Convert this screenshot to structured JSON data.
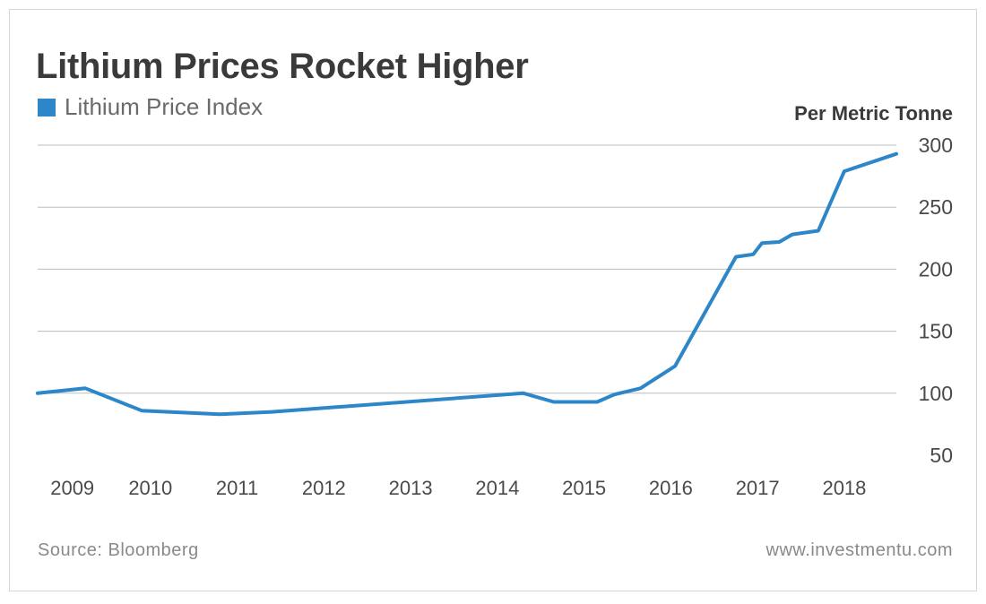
{
  "title": "Lithium Prices Rocket Higher",
  "legend": {
    "label": "Lithium Price Index",
    "color": "#2c86c8"
  },
  "unit_label": "Per Metric Tonne",
  "source": "Source: Bloomberg",
  "website": "www.investmentu.com",
  "chart_data": {
    "type": "line",
    "title": "Lithium Prices Rocket Higher",
    "ylabel": "Per Metric Tonne",
    "xlabel": "",
    "ylim": [
      50,
      300
    ],
    "xlim": [
      2008.6,
      2018.5
    ],
    "yticks": [
      300,
      250,
      200,
      150,
      100,
      50
    ],
    "xticks": [
      {
        "x": 2009.0,
        "label": "2009"
      },
      {
        "x": 2009.9,
        "label": "2010"
      },
      {
        "x": 2010.9,
        "label": "2011"
      },
      {
        "x": 2011.9,
        "label": "2012"
      },
      {
        "x": 2012.9,
        "label": "2013"
      },
      {
        "x": 2013.9,
        "label": "2014"
      },
      {
        "x": 2014.9,
        "label": "2015"
      },
      {
        "x": 2015.9,
        "label": "2016"
      },
      {
        "x": 2016.9,
        "label": "2017"
      },
      {
        "x": 2017.9,
        "label": "2018"
      }
    ],
    "grid": true,
    "legend_position": "top-left",
    "series": [
      {
        "name": "Lithium Price Index",
        "color": "#2c86c8",
        "x": [
          2008.6,
          2009.15,
          2009.8,
          2010.7,
          2011.3,
          2014.2,
          2014.55,
          2015.05,
          2015.25,
          2015.55,
          2015.95,
          2016.65,
          2016.85,
          2016.95,
          2017.15,
          2017.3,
          2017.6,
          2017.9,
          2018.5
        ],
        "y": [
          100,
          104,
          86,
          83,
          85,
          100,
          93,
          93,
          99,
          104,
          122,
          210,
          212,
          221,
          222,
          228,
          231,
          279,
          293
        ]
      }
    ]
  }
}
